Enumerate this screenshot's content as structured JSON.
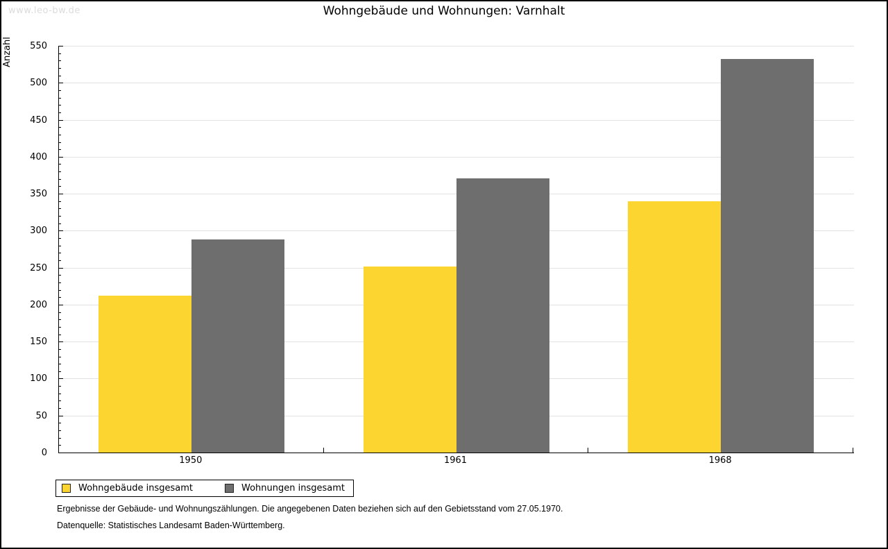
{
  "watermark": "www.leo-bw.de",
  "title": "Wohngebäude und Wohnungen: Varnhalt",
  "chart_data": {
    "type": "bar",
    "title": "Wohngebäude und Wohnungen: Varnhalt",
    "categories": [
      "1950",
      "1961",
      "1968"
    ],
    "series": [
      {
        "name": "Wohngebäude insgesamt",
        "color": "#FDD530",
        "values": [
          212,
          252,
          340
        ]
      },
      {
        "name": "Wohnungen insgesamt",
        "color": "#6E6E6E",
        "values": [
          288,
          371,
          532
        ]
      }
    ],
    "xlabel": "",
    "ylabel": "Anzahl",
    "ylim": [
      0,
      550
    ],
    "ytick_step": 50,
    "ytick_minor_step": 10,
    "grid": true,
    "gridline_color": "#e2e2e2",
    "legend_position": "bottom-left"
  },
  "footnotes": [
    "Ergebnisse der Gebäude- und Wohnungszählungen. Die angegebenen Daten beziehen sich auf den Gebietsstand vom 27.05.1970.",
    "Datenquelle: Statistisches Landesamt Baden-Württemberg."
  ]
}
